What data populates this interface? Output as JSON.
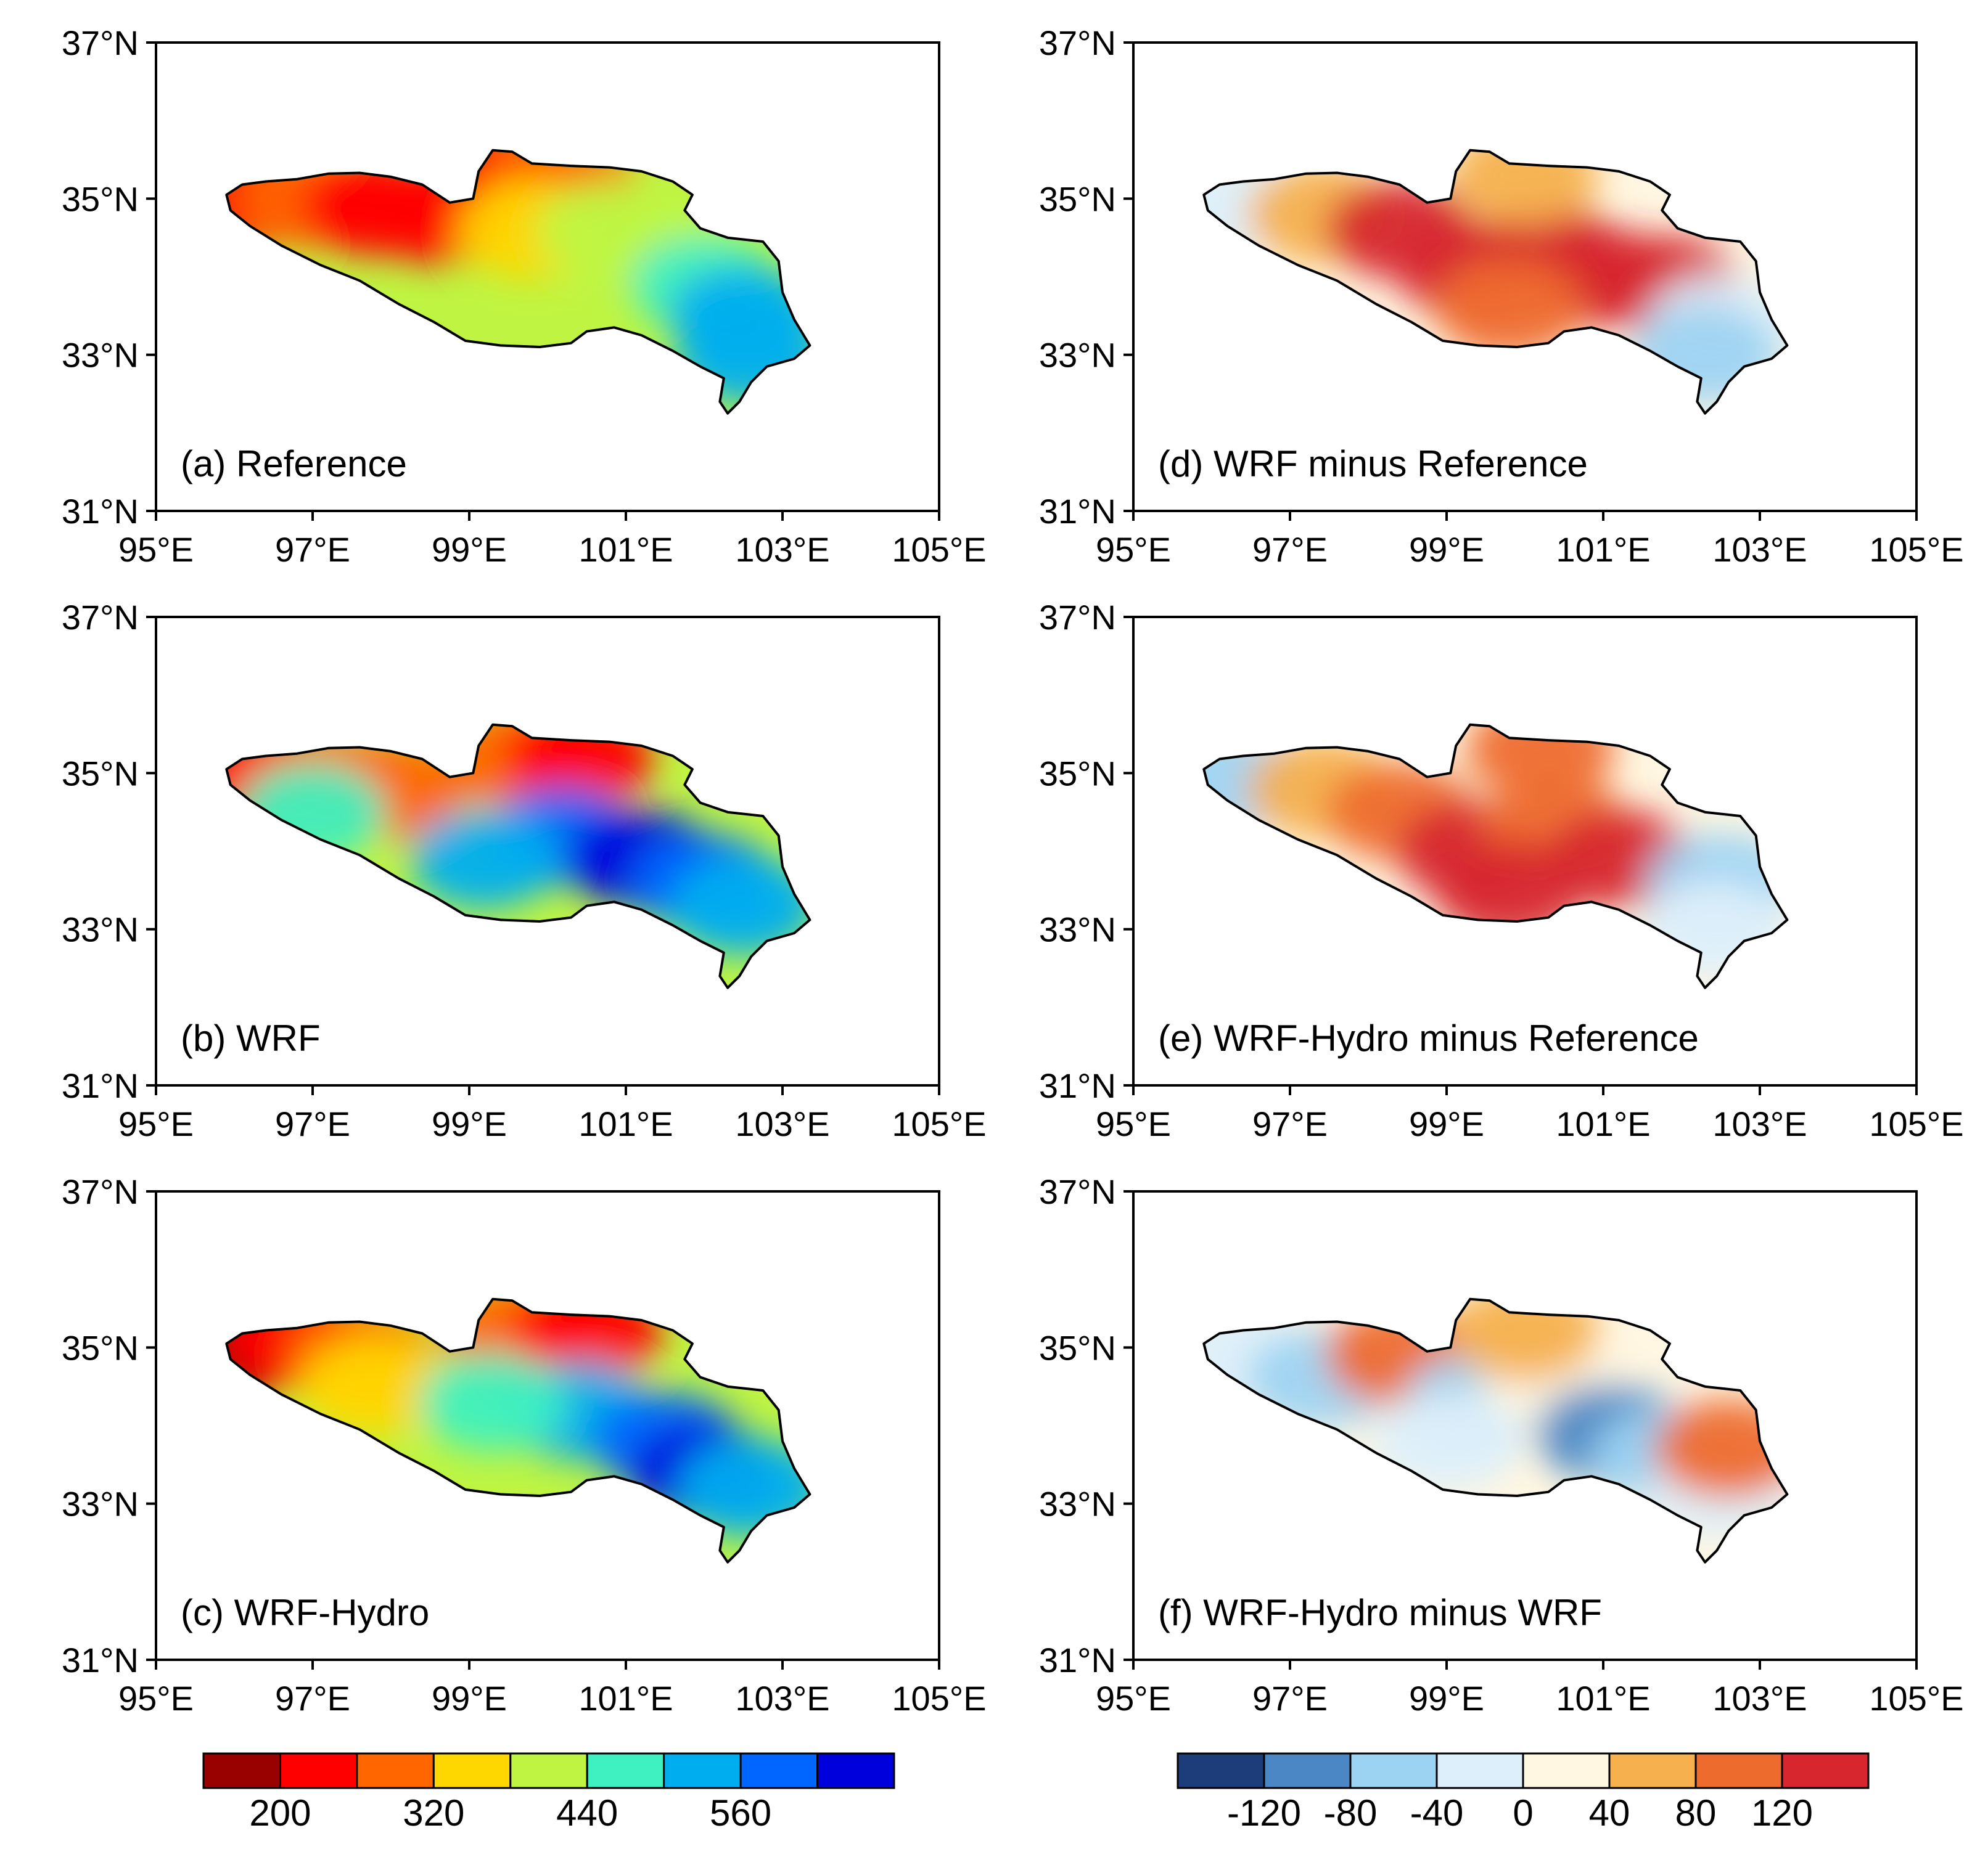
{
  "figure": {
    "lat_ticks": [
      "37°N",
      "35°N",
      "33°N",
      "31°N"
    ],
    "lon_ticks": [
      "95°E",
      "97°E",
      "99°E",
      "101°E",
      "103°E",
      "105°E"
    ]
  },
  "chart_data": [
    {
      "type": "heatmap",
      "id": "a",
      "title": "(a) Reference",
      "xlim": [
        95,
        105
      ],
      "ylim": [
        31,
        37
      ],
      "scale": "absolute",
      "pattern": [
        [
          96.2,
          35.0,
          "#FF0000"
        ],
        [
          97.0,
          35.0,
          "#FF6600"
        ],
        [
          97.8,
          34.9,
          "#FF0000"
        ],
        [
          98.6,
          34.8,
          "#FF0000"
        ],
        [
          99.5,
          35.3,
          "#FF0000"
        ],
        [
          100.2,
          35.2,
          "#FF6600"
        ],
        [
          99.8,
          34.6,
          "#FFD700"
        ],
        [
          100.8,
          34.6,
          "#BFF542"
        ],
        [
          101.4,
          34.4,
          "#BFF542"
        ],
        [
          102.0,
          33.9,
          "#3FF0C0"
        ],
        [
          102.5,
          33.5,
          "#00AEEF"
        ],
        [
          102.6,
          33.0,
          "#00AEEF"
        ]
      ]
    },
    {
      "type": "heatmap",
      "id": "b",
      "title": "(b) WRF",
      "xlim": [
        95,
        105
      ],
      "ylim": [
        31,
        37
      ],
      "scale": "absolute",
      "pattern": [
        [
          96.2,
          35.0,
          "#FF0000"
        ],
        [
          97.2,
          34.9,
          "#FF6600"
        ],
        [
          98.0,
          34.8,
          "#FF6600"
        ],
        [
          97.0,
          34.5,
          "#3FF0C0"
        ],
        [
          99.6,
          35.2,
          "#FF6600"
        ],
        [
          100.4,
          35.2,
          "#FF0000"
        ],
        [
          100.2,
          34.2,
          "#0066FF"
        ],
        [
          101.2,
          33.9,
          "#0000DD"
        ],
        [
          102.0,
          33.6,
          "#0066FF"
        ],
        [
          102.5,
          33.3,
          "#00AEEF"
        ],
        [
          99.2,
          33.9,
          "#00AEEF"
        ]
      ]
    },
    {
      "type": "heatmap",
      "id": "c",
      "title": "(c) WRF-Hydro",
      "xlim": [
        95,
        105
      ],
      "ylim": [
        31,
        37
      ],
      "scale": "absolute",
      "pattern": [
        [
          96.1,
          35.0,
          "#990000"
        ],
        [
          96.8,
          35.1,
          "#FF0000"
        ],
        [
          97.6,
          34.9,
          "#FF6600"
        ],
        [
          97.8,
          34.5,
          "#FFD700"
        ],
        [
          99.6,
          35.2,
          "#FF6600"
        ],
        [
          100.5,
          35.2,
          "#FF0000"
        ],
        [
          100.4,
          34.2,
          "#00AEEF"
        ],
        [
          101.5,
          33.8,
          "#0066FF"
        ],
        [
          102.0,
          33.4,
          "#0000DD"
        ],
        [
          102.6,
          33.2,
          "#00AEEF"
        ],
        [
          99.3,
          34.3,
          "#3FF0C0"
        ]
      ]
    },
    {
      "type": "heatmap",
      "id": "d",
      "title": "(d) WRF minus Reference",
      "xlim": [
        95,
        105
      ],
      "ylim": [
        31,
        37
      ],
      "scale": "difference",
      "pattern": [
        [
          96.3,
          34.9,
          "#DDEFFA"
        ],
        [
          97.4,
          34.8,
          "#F6B04D"
        ],
        [
          98.4,
          34.6,
          "#D7262E"
        ],
        [
          99.3,
          34.1,
          "#D7262E"
        ],
        [
          100.3,
          34.3,
          "#D7262E"
        ],
        [
          101.0,
          34.0,
          "#D7262E"
        ],
        [
          101.8,
          33.9,
          "#D7262E"
        ],
        [
          100.0,
          35.3,
          "#F6B04D"
        ],
        [
          102.5,
          33.4,
          "#DDEFFA"
        ],
        [
          102.3,
          33.0,
          "#9DD3F2"
        ],
        [
          99.8,
          33.6,
          "#EE6B2E"
        ]
      ]
    },
    {
      "type": "heatmap",
      "id": "e",
      "title": "(e) WRF-Hydro minus Reference",
      "xlim": [
        95,
        105
      ],
      "ylim": [
        31,
        37
      ],
      "scale": "difference",
      "pattern": [
        [
          96.3,
          34.9,
          "#9DD3F2"
        ],
        [
          97.4,
          34.8,
          "#F6B04D"
        ],
        [
          98.4,
          34.5,
          "#EE6B2E"
        ],
        [
          99.3,
          34.0,
          "#D7262E"
        ],
        [
          100.4,
          34.3,
          "#EE6B2E"
        ],
        [
          101.2,
          33.9,
          "#D7262E"
        ],
        [
          100.2,
          35.3,
          "#EE6B2E"
        ],
        [
          102.5,
          33.6,
          "#9DD3F2"
        ],
        [
          102.4,
          33.0,
          "#DDEFFA"
        ],
        [
          99.8,
          33.5,
          "#D7262E"
        ]
      ]
    },
    {
      "type": "heatmap",
      "id": "f",
      "title": "(f) WRF-Hydro minus WRF",
      "xlim": [
        95,
        105
      ],
      "ylim": [
        31,
        37
      ],
      "scale": "difference",
      "pattern": [
        [
          96.3,
          34.9,
          "#DDEFFA"
        ],
        [
          97.4,
          34.6,
          "#9DD3F2"
        ],
        [
          98.4,
          34.9,
          "#EE6B2E"
        ],
        [
          99.4,
          34.3,
          "#9DD3F2"
        ],
        [
          100.4,
          34.5,
          "#FFF7E2"
        ],
        [
          101.1,
          33.9,
          "#4A87C4"
        ],
        [
          100.0,
          35.2,
          "#F6B04D"
        ],
        [
          101.8,
          33.6,
          "#9DD3F2"
        ],
        [
          102.5,
          33.2,
          "#DDEFFA"
        ],
        [
          102.6,
          33.7,
          "#EE6B2E"
        ],
        [
          99.0,
          33.8,
          "#DDEFFA"
        ]
      ]
    }
  ],
  "colorbars": {
    "absolute": {
      "colors": [
        "#990000",
        "#FF0000",
        "#FF6600",
        "#FFD700",
        "#BFF542",
        "#3FF0C0",
        "#00AEEF",
        "#0066FF",
        "#0000DD"
      ],
      "labels": [
        "200",
        "320",
        "440",
        "560"
      ]
    },
    "difference": {
      "colors": [
        "#1D3D7A",
        "#4A87C4",
        "#9DD3F2",
        "#DDEFFA",
        "#FFF7E2",
        "#F6B04D",
        "#EE6B2E",
        "#D7262E"
      ],
      "labels": [
        "-120",
        "-80",
        "-40",
        "0",
        "40",
        "80",
        "120"
      ]
    }
  }
}
